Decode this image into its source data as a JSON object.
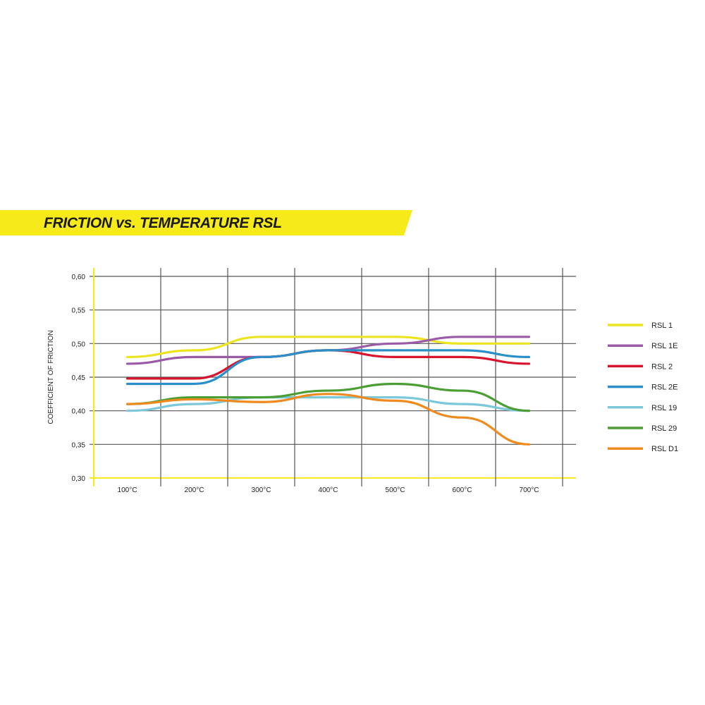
{
  "chart_data": {
    "type": "line",
    "title": "FRICTION vs. TEMPERATURE RSL",
    "xlabel": "",
    "ylabel": "COEFFICIENT OF FRICTION",
    "categories": [
      "100°C",
      "200°C",
      "300°C",
      "400°C",
      "500°C",
      "600°C",
      "700°C"
    ],
    "y_ticks": [
      "0,30",
      "0,35",
      "0,40",
      "0,45",
      "0,50",
      "0,55",
      "0,60"
    ],
    "ylim": [
      0.3,
      0.6
    ],
    "grid": true,
    "legend_position": "right",
    "accent_color": "#f7ea1a",
    "series": [
      {
        "name": "RSL 1",
        "color": "#ece41e",
        "values": [
          0.48,
          0.49,
          0.51,
          0.51,
          0.51,
          0.5,
          0.5
        ]
      },
      {
        "name": "RSL 1E",
        "color": "#9a5aa6",
        "values": [
          0.47,
          0.48,
          0.48,
          0.49,
          0.5,
          0.51,
          0.51
        ]
      },
      {
        "name": "RSL 2",
        "color": "#d8142e",
        "values": [
          0.448,
          0.448,
          0.48,
          0.49,
          0.48,
          0.48,
          0.47
        ]
      },
      {
        "name": "RSL 2E",
        "color": "#2a8fc9",
        "values": [
          0.44,
          0.44,
          0.48,
          0.49,
          0.49,
          0.49,
          0.48
        ]
      },
      {
        "name": "RSL 19",
        "color": "#7cc8d8",
        "values": [
          0.4,
          0.41,
          0.42,
          0.42,
          0.42,
          0.41,
          0.4
        ]
      },
      {
        "name": "RSL 29",
        "color": "#4a9e34",
        "values": [
          0.41,
          0.42,
          0.42,
          0.43,
          0.44,
          0.43,
          0.4
        ]
      },
      {
        "name": "RSL D1",
        "color": "#ef8a1e",
        "values": [
          0.41,
          0.417,
          0.413,
          0.425,
          0.415,
          0.39,
          0.35
        ]
      }
    ]
  }
}
